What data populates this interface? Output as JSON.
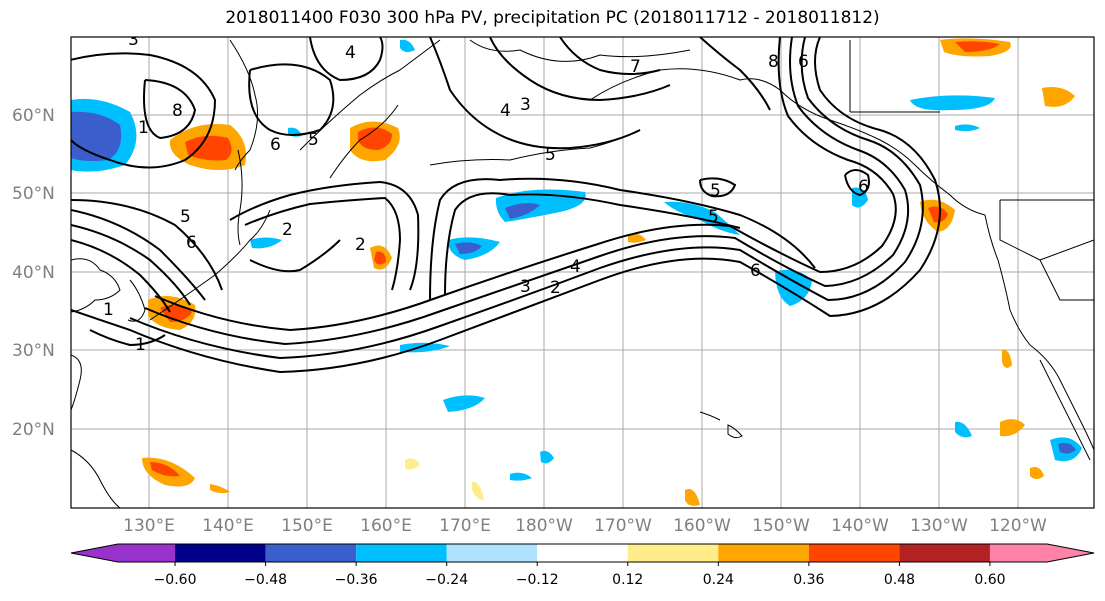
{
  "title": "2018011400 F030 300 hPa PV, precipitation PC (2018011712 - 2018011812)",
  "lat_labels": [
    "60°N",
    "50°N",
    "40°N",
    "30°N",
    "20°N"
  ],
  "lon_labels": [
    "130°E",
    "140°E",
    "150°E",
    "160°E",
    "170°E",
    "180°W",
    "170°W",
    "160°W",
    "150°W",
    "140°W",
    "130°W",
    "120°W"
  ],
  "colorbar": {
    "ticks": [
      "−0.60",
      "−0.48",
      "−0.36",
      "−0.24",
      "−0.12",
      "0.12",
      "0.24",
      "0.36",
      "0.48",
      "0.60"
    ],
    "colors": [
      "#9932cc",
      "#00008b",
      "#3a5fcd",
      "#00bfff",
      "#b0e2ff",
      "#ffffff",
      "#ffec8b",
      "#ffa500",
      "#ff4500",
      "#b22222",
      "#ff83a8"
    ]
  },
  "contour_labels": [
    "3",
    "4",
    "5",
    "6",
    "7",
    "8",
    "6",
    "5",
    "4",
    "3",
    "2",
    "1",
    "1",
    "2",
    "5",
    "6",
    "5",
    "4",
    "3",
    "2",
    "5",
    "6",
    "8",
    "6",
    "1"
  ]
}
